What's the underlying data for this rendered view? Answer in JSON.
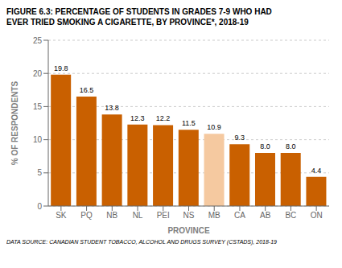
{
  "chart_data": {
    "type": "bar",
    "title": "FIGURE 6.3: PERCENTAGE OF STUDENTS IN GRADES 7-9 WHO HAD",
    "subtitle": "EVER TRIED SMOKING A CIGARETTE, BY PROVINCE*, 2018-19",
    "categories": [
      "SK",
      "PQ",
      "NB",
      "NL",
      "PEI",
      "NS",
      "MB",
      "CA",
      "AB",
      "BC",
      "ON"
    ],
    "values": [
      19.8,
      16.5,
      13.8,
      12.3,
      12.2,
      11.5,
      10.9,
      9.3,
      8.0,
      8.0,
      4.4
    ],
    "value_labels": [
      "19.8",
      "16.5",
      "13.8",
      "12.3",
      "12.2",
      "11.5",
      "10.9",
      "9.3",
      "8.0",
      "8.0",
      "4.4"
    ],
    "colors": [
      "#C96000",
      "#C96000",
      "#C96000",
      "#C96000",
      "#C96000",
      "#C96000",
      "#F5C9A0",
      "#C96000",
      "#C96000",
      "#C96000",
      "#C96000"
    ],
    "xlabel": "PROVINCE",
    "ylabel": "% OF RESPONDENTS",
    "ylim": [
      0,
      25
    ],
    "yticks": [
      0,
      5,
      10,
      15,
      20,
      25
    ],
    "grid": true,
    "data_labels": true,
    "annotations": [
      "DATA SOURCE: CANADIAN STUDENT TOBACCO, ALCOHOL AND DRUGS SURVEY (CSTADS), 2018-19"
    ]
  }
}
